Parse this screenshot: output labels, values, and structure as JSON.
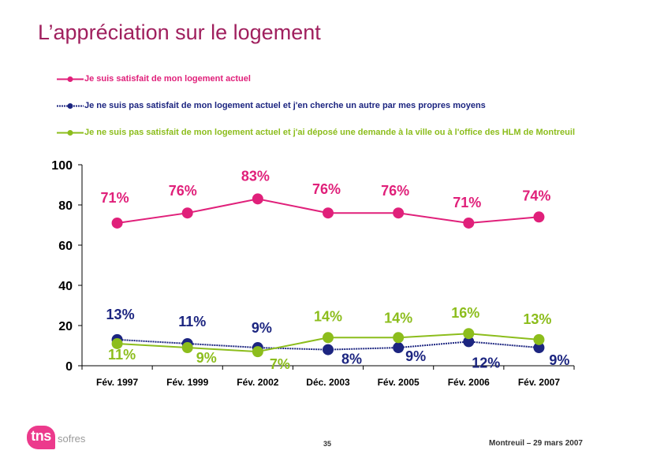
{
  "title": "L’appréciation sur le logement",
  "legend": [
    {
      "label": "Je suis satisfait de mon logement actuel",
      "color": "#e0207a"
    },
    {
      "label": "Je ne suis pas satisfait de mon logement actuel et j'en cherche un autre par mes propres moyens",
      "color": "#1c2580"
    },
    {
      "label": "Je ne suis pas satisfait de mon logement actuel et j'ai déposé une demande à la ville ou à l'office des HLM de Montreuil",
      "color": "#8cbd1c"
    }
  ],
  "chart_data": {
    "type": "line",
    "categories": [
      "Fév. 1997",
      "Fév. 1999",
      "Fév. 2002",
      "Déc. 2003",
      "Fév. 2005",
      "Fév. 2006",
      "Fév. 2007"
    ],
    "ylim": [
      0,
      100
    ],
    "yticks": [
      0,
      20,
      40,
      60,
      80,
      100
    ],
    "series": [
      {
        "name": "Je suis satisfait de mon logement actuel",
        "color": "#e0207a",
        "label_color": "#e0207a",
        "values": [
          71,
          76,
          83,
          76,
          76,
          71,
          74
        ],
        "labels": [
          "71%",
          "76%",
          "83%",
          "76%",
          "76%",
          "71%",
          "74%"
        ]
      },
      {
        "name": "Je ne suis pas satisfait de mon logement actuel et j'en cherche un autre par mes propres moyens",
        "color": "#1c2580",
        "label_color": "#1c2580",
        "values": [
          13,
          11,
          9,
          8,
          9,
          12,
          9
        ],
        "labels": [
          "13%",
          "11%",
          "9%",
          "8%",
          "9%",
          "12%",
          "9%"
        ]
      },
      {
        "name": "Je ne suis pas satisfait de mon logement actuel et j'ai déposé une demande à la ville ou à l'office des HLM de Montreuil",
        "color": "#8cbd1c",
        "label_color": "#8cbd1c",
        "values": [
          11,
          9,
          7,
          14,
          14,
          16,
          13
        ],
        "labels": [
          "11%",
          "9%",
          "7%",
          "14%",
          "14%",
          "16%",
          "13%"
        ]
      }
    ],
    "xlabel": "",
    "ylabel": "",
    "grid": false,
    "legend_position": "top"
  },
  "footer": {
    "logo_main": "tns",
    "logo_sub": "sofres",
    "page_number": "35",
    "right_text": "Montreuil – 29 mars 2007"
  }
}
